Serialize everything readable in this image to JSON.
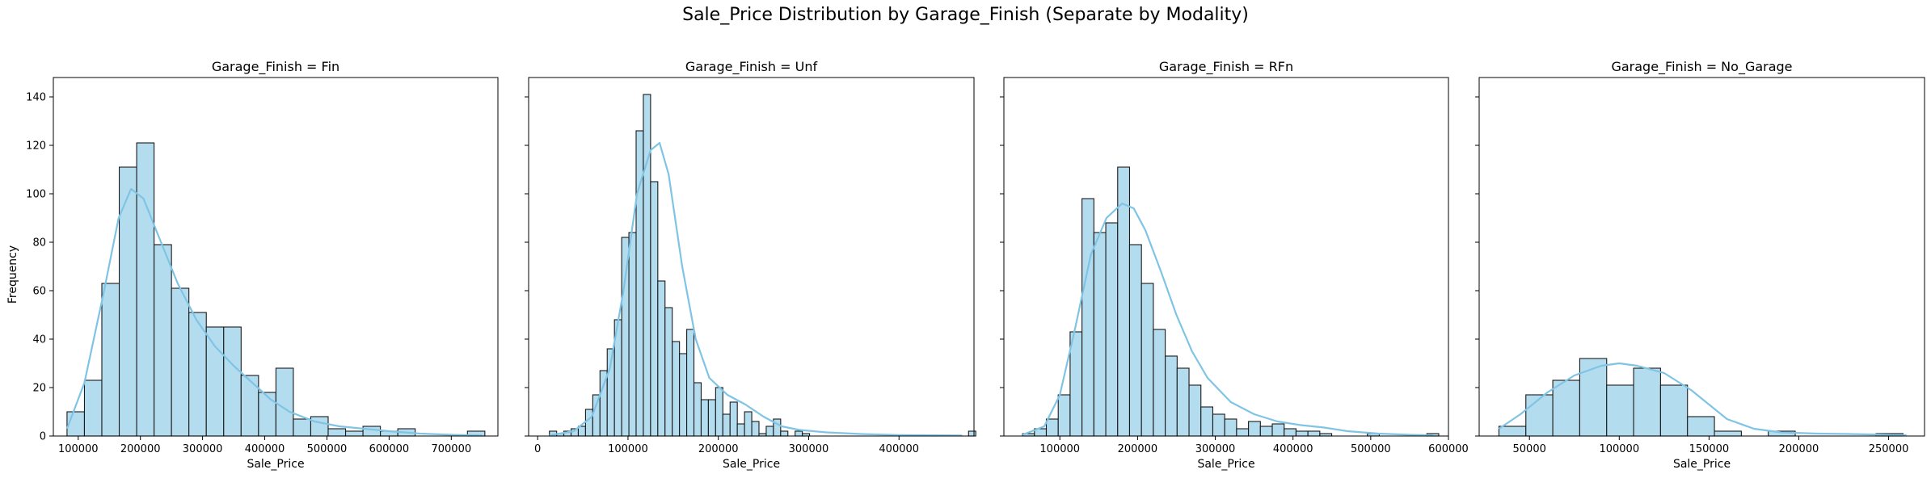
{
  "figure": {
    "suptitle": "Sale_Price Distribution by Garage_Finish (Separate by Modality)",
    "ylabel": "Frequency"
  },
  "colors": {
    "bar_fill": "#b4dcef",
    "bar_edge": "#1a1a1a",
    "kde": "#7fc4e4",
    "axes": "#000000"
  },
  "chart_data": [
    {
      "type": "bar",
      "title": "Garage_Finish = Fin",
      "xlabel": "Sale_Price",
      "ylabel": "Frequency",
      "xlim": [
        60000,
        775000
      ],
      "ylim": [
        0,
        148
      ],
      "xticks": [
        100000,
        200000,
        300000,
        400000,
        500000,
        600000,
        700000
      ],
      "yticks": [
        0,
        20,
        40,
        60,
        80,
        100,
        120,
        140
      ],
      "bin_start": 82000,
      "bin_width": 28000,
      "values": [
        10,
        23,
        63,
        111,
        121,
        79,
        61,
        51,
        45,
        45,
        25,
        18,
        28,
        7,
        8,
        3,
        2,
        4,
        2,
        3,
        0,
        0,
        0,
        2
      ],
      "kde": [
        [
          82000,
          3
        ],
        [
          110000,
          22
        ],
        [
          140000,
          58
        ],
        [
          165000,
          90
        ],
        [
          185000,
          102
        ],
        [
          205000,
          98
        ],
        [
          230000,
          82
        ],
        [
          260000,
          63
        ],
        [
          290000,
          48
        ],
        [
          320000,
          37
        ],
        [
          350000,
          29
        ],
        [
          380000,
          22
        ],
        [
          410000,
          15
        ],
        [
          440000,
          10
        ],
        [
          480000,
          6
        ],
        [
          520000,
          4
        ],
        [
          560000,
          3
        ],
        [
          600000,
          2
        ],
        [
          650000,
          1
        ],
        [
          700000,
          0.5
        ],
        [
          750000,
          0.2
        ]
      ]
    },
    {
      "type": "bar",
      "title": "Garage_Finish = Unf",
      "xlabel": "Sale_Price",
      "ylabel": "",
      "xlim": [
        -10000,
        483000
      ],
      "ylim": [
        0,
        148
      ],
      "xticks": [
        0,
        100000,
        200000,
        300000,
        400000
      ],
      "yticks": [
        0,
        20,
        40,
        60,
        80,
        100,
        120,
        140
      ],
      "bin_start": 13000,
      "bin_width": 8000,
      "values": [
        2,
        1,
        2,
        3,
        4,
        11,
        17,
        27,
        36,
        48,
        82,
        84,
        126,
        141,
        105,
        64,
        53,
        39,
        34,
        44,
        22,
        15,
        15,
        20,
        9,
        14,
        5,
        10,
        6,
        1,
        4,
        7,
        2,
        0,
        2,
        1,
        0,
        0,
        0,
        0,
        0,
        0,
        0,
        0,
        0,
        0,
        0,
        0,
        0,
        0,
        0,
        0,
        0,
        0,
        0,
        0,
        0,
        0,
        2
      ],
      "kde": [
        [
          13000,
          0.3
        ],
        [
          40000,
          2
        ],
        [
          60000,
          8
        ],
        [
          80000,
          28
        ],
        [
          95000,
          60
        ],
        [
          110000,
          100
        ],
        [
          125000,
          118
        ],
        [
          135000,
          121
        ],
        [
          145000,
          108
        ],
        [
          160000,
          70
        ],
        [
          175000,
          40
        ],
        [
          190000,
          24
        ],
        [
          210000,
          17
        ],
        [
          230000,
          13
        ],
        [
          250000,
          8
        ],
        [
          270000,
          4
        ],
        [
          290000,
          2.5
        ],
        [
          320000,
          1.5
        ],
        [
          360000,
          0.8
        ],
        [
          400000,
          0.4
        ],
        [
          440000,
          0.3
        ],
        [
          470000,
          0.2
        ]
      ]
    },
    {
      "type": "bar",
      "title": "Garage_Finish = RFn",
      "xlabel": "Sale_Price",
      "ylabel": "",
      "xlim": [
        28000,
        600000
      ],
      "ylim": [
        0,
        148
      ],
      "xticks": [
        100000,
        200000,
        300000,
        400000,
        500000,
        600000
      ],
      "yticks": [
        0,
        20,
        40,
        60,
        80,
        100,
        120,
        140
      ],
      "bin_start": 52000,
      "bin_width": 15300,
      "values": [
        1,
        3,
        7,
        17,
        43,
        98,
        84,
        88,
        111,
        79,
        63,
        44,
        33,
        28,
        21,
        12,
        9,
        7,
        3,
        6,
        4,
        5,
        3,
        2,
        2,
        1,
        0,
        0,
        0,
        1,
        0,
        0,
        0,
        0,
        1
      ],
      "kde": [
        [
          52000,
          0.5
        ],
        [
          80000,
          4
        ],
        [
          100000,
          17
        ],
        [
          120000,
          45
        ],
        [
          140000,
          75
        ],
        [
          160000,
          90
        ],
        [
          180000,
          96
        ],
        [
          195000,
          94
        ],
        [
          210000,
          85
        ],
        [
          230000,
          68
        ],
        [
          250000,
          50
        ],
        [
          270000,
          35
        ],
        [
          290000,
          24
        ],
        [
          320000,
          14
        ],
        [
          350000,
          9
        ],
        [
          380000,
          6
        ],
        [
          410000,
          4.5
        ],
        [
          440000,
          3.5
        ],
        [
          470000,
          2
        ],
        [
          510000,
          1
        ],
        [
          550000,
          0.5
        ],
        [
          580000,
          0.3
        ]
      ]
    },
    {
      "type": "bar",
      "title": "Garage_Finish = No_Garage",
      "xlabel": "Sale_Price",
      "ylabel": "",
      "xlim": [
        22000,
        270000
      ],
      "ylim": [
        0,
        148
      ],
      "xticks": [
        50000,
        100000,
        150000,
        200000,
        250000
      ],
      "yticks": [
        0,
        20,
        40,
        60,
        80,
        100,
        120,
        140
      ],
      "bin_start": 33000,
      "bin_width": 15000,
      "values": [
        4,
        17,
        23,
        32,
        21,
        28,
        21,
        8,
        2,
        0,
        2,
        0,
        0,
        0,
        1
      ],
      "kde": [
        [
          33000,
          3
        ],
        [
          45000,
          9
        ],
        [
          60000,
          18
        ],
        [
          75000,
          25
        ],
        [
          90000,
          29
        ],
        [
          100000,
          30
        ],
        [
          110000,
          29
        ],
        [
          125000,
          26
        ],
        [
          140000,
          19
        ],
        [
          150000,
          13
        ],
        [
          160000,
          7
        ],
        [
          175000,
          3
        ],
        [
          190000,
          1.5
        ],
        [
          210000,
          1
        ],
        [
          230000,
          0.8
        ],
        [
          250000,
          0.5
        ],
        [
          260000,
          0.3
        ]
      ]
    }
  ]
}
